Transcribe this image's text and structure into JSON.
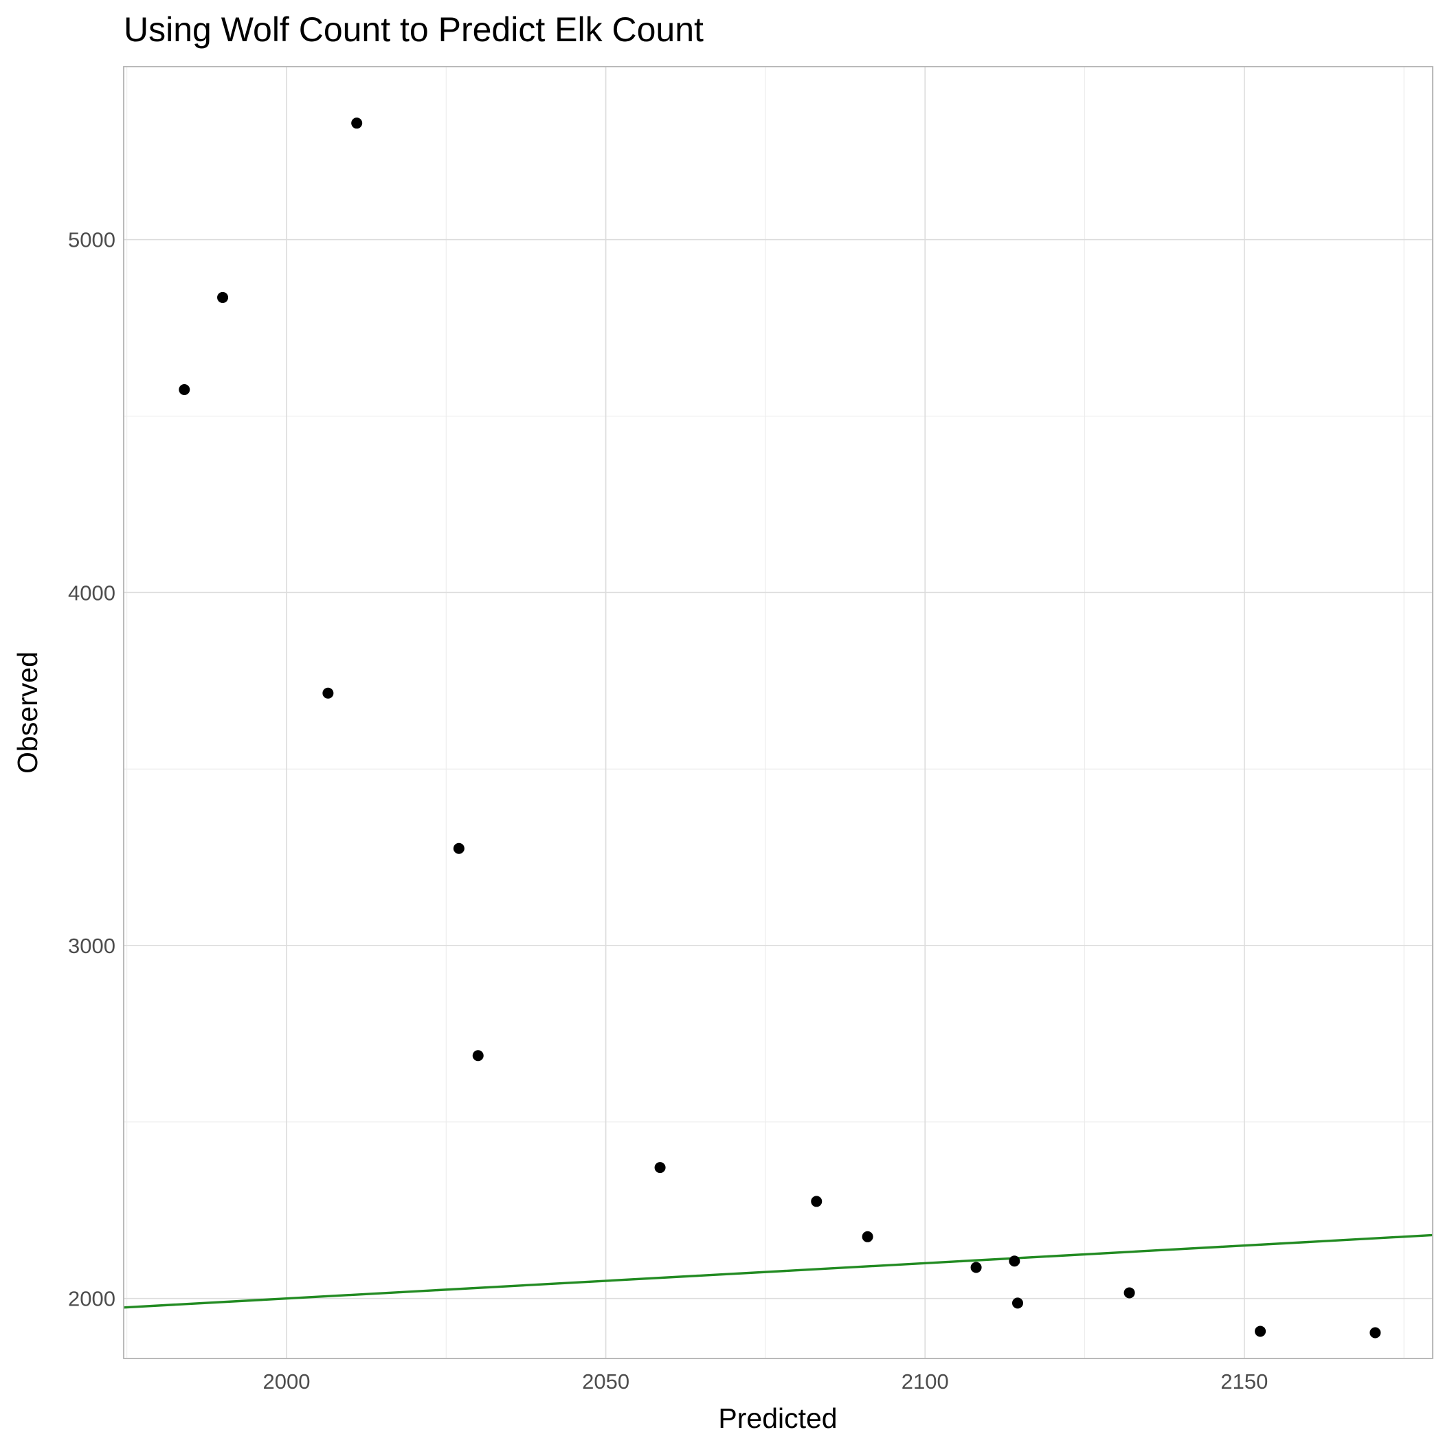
{
  "chart_data": {
    "type": "scatter",
    "title": "Using Wolf Count to Predict Elk Count",
    "xlabel": "Predicted",
    "ylabel": "Observed",
    "xlim": [
      1974.5,
      2179.5
    ],
    "ylim": [
      1830,
      5490
    ],
    "x_major_ticks": [
      2000,
      2050,
      2100,
      2150
    ],
    "x_minor_ticks": [
      1975,
      2025,
      2075,
      2125,
      2175
    ],
    "y_major_ticks": [
      2000,
      3000,
      4000,
      5000
    ],
    "y_minor_ticks": [
      2500,
      3500,
      4500
    ],
    "x_tick_labels": [
      "2000",
      "2050",
      "2100",
      "2150"
    ],
    "y_tick_labels": [
      "2000",
      "3000",
      "4000",
      "5000"
    ],
    "grid": true,
    "points": [
      {
        "x": 2011,
        "y": 5330
      },
      {
        "x": 1990,
        "y": 4836
      },
      {
        "x": 1984,
        "y": 4575
      },
      {
        "x": 2006.5,
        "y": 3715
      },
      {
        "x": 2027,
        "y": 3275
      },
      {
        "x": 2030,
        "y": 2688
      },
      {
        "x": 2058.5,
        "y": 2371
      },
      {
        "x": 2083,
        "y": 2275
      },
      {
        "x": 2091,
        "y": 2175
      },
      {
        "x": 2108,
        "y": 2088
      },
      {
        "x": 2114,
        "y": 2106
      },
      {
        "x": 2114.5,
        "y": 1987
      },
      {
        "x": 2132,
        "y": 2016
      },
      {
        "x": 2152.5,
        "y": 1907
      },
      {
        "x": 2170.5,
        "y": 1903
      }
    ],
    "reference_line": {
      "slope": 1,
      "intercept": 0,
      "color": "#228b22"
    },
    "point_color": "#000000"
  }
}
